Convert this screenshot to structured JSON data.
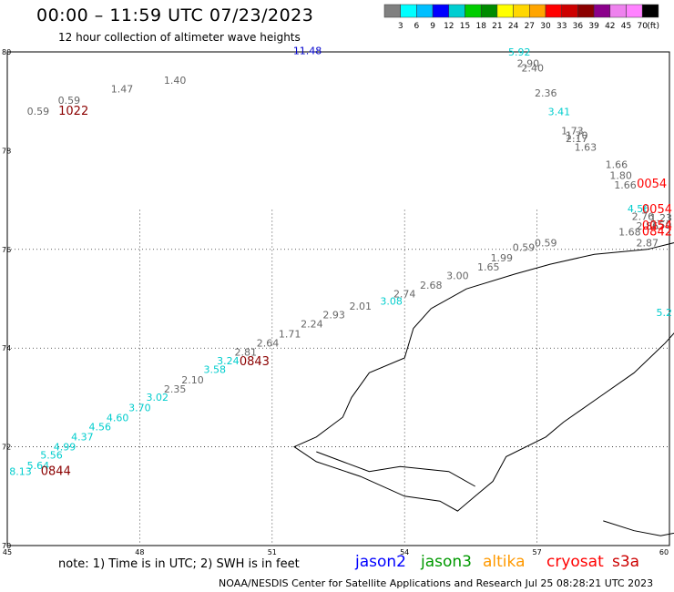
{
  "header": {
    "title": "00:00 – 11:59 UTC 07/23/2023",
    "subtitle": "12 hour collection of altimeter wave heights"
  },
  "colorbar": {
    "ticks": [
      "3",
      "6",
      "9",
      "12",
      "15",
      "18",
      "21",
      "24",
      "27",
      "30",
      "33",
      "36",
      "39",
      "42",
      "45",
      "70"
    ],
    "unit": "(ft)",
    "colors": [
      "#808080",
      "#00ffff",
      "#00bfff",
      "#0000ff",
      "#00ced1",
      "#00cd00",
      "#008b00",
      "#ffff00",
      "#ffd700",
      "#ffa500",
      "#ff0000",
      "#cd0000",
      "#8b0000",
      "#8b008b",
      "#ee82ee",
      "#ff82ff",
      "#000000"
    ]
  },
  "axes": {
    "lat_labels": [
      "80",
      "78",
      "76",
      "74",
      "72",
      "70"
    ],
    "lon_labels": [
      "45",
      "48",
      "51",
      "54",
      "57",
      "60"
    ]
  },
  "wave_labels": [
    {
      "text": "11.48",
      "color": "#0000cd",
      "lon": 51.8,
      "lat": 79.95
    },
    {
      "text": "5.92",
      "color": "#00cdcd",
      "lon": 56.6,
      "lat": 79.93
    },
    {
      "text": "2.90",
      "color": "#666666",
      "lon": 56.8,
      "lat": 79.7
    },
    {
      "text": "2.40",
      "color": "#666666",
      "lon": 56.9,
      "lat": 79.6
    },
    {
      "text": "2.36",
      "color": "#666666",
      "lon": 57.2,
      "lat": 79.1
    },
    {
      "text": "3.41",
      "color": "#00cdcd",
      "lon": 57.5,
      "lat": 78.72
    },
    {
      "text": "1.73",
      "color": "#666666",
      "lon": 57.8,
      "lat": 78.33
    },
    {
      "text": "1.70",
      "color": "#666666",
      "lon": 57.9,
      "lat": 78.24
    },
    {
      "text": "2.17",
      "color": "#666666",
      "lon": 57.9,
      "lat": 78.17
    },
    {
      "text": "1.63",
      "color": "#666666",
      "lon": 58.1,
      "lat": 78.0
    },
    {
      "text": "1.66",
      "color": "#666666",
      "lon": 58.8,
      "lat": 77.65
    },
    {
      "text": "1.80",
      "color": "#666666",
      "lon": 58.9,
      "lat": 77.43
    },
    {
      "text": "1.66",
      "color": "#666666",
      "lon": 59.0,
      "lat": 77.23
    },
    {
      "text": "0054",
      "color": "#ff0000",
      "lon": 59.6,
      "lat": 77.25
    },
    {
      "text": "4.56",
      "color": "#00cdcd",
      "lon": 59.3,
      "lat": 76.75
    },
    {
      "text": "0054",
      "color": "#ff0000",
      "lon": 59.9,
      "lat": 76.73
    },
    {
      "text": "2.76",
      "color": "#666666",
      "lon": 59.4,
      "lat": 76.6
    },
    {
      "text": "1.23",
      "color": "#666666",
      "lon": 60.3,
      "lat": 76.57
    },
    {
      "text": "2.86",
      "color": "#666666",
      "lon": 59.5,
      "lat": 76.4
    },
    {
      "text": "0.59",
      "color": "#666666",
      "lon": 59.8,
      "lat": 76.42
    },
    {
      "text": "0054",
      "color": "#ff0000",
      "lon": 60.2,
      "lat": 76.4
    },
    {
      "text": "1.68",
      "color": "#666666",
      "lon": 59.1,
      "lat": 76.28
    },
    {
      "text": "0842",
      "color": "#ff0000",
      "lon": 59.8,
      "lat": 76.28
    },
    {
      "text": "2.87",
      "color": "#666666",
      "lon": 59.5,
      "lat": 76.06
    },
    {
      "text": "0.59",
      "color": "#666666",
      "lon": 57.2,
      "lat": 76.06
    },
    {
      "text": "0.59",
      "color": "#666666",
      "lon": 56.7,
      "lat": 75.97
    },
    {
      "text": "1.99",
      "color": "#666666",
      "lon": 56.2,
      "lat": 75.76
    },
    {
      "text": "1.65",
      "color": "#666666",
      "lon": 55.9,
      "lat": 75.57
    },
    {
      "text": "3.00",
      "color": "#666666",
      "lon": 55.2,
      "lat": 75.4
    },
    {
      "text": "2.68",
      "color": "#666666",
      "lon": 54.6,
      "lat": 75.2
    },
    {
      "text": "2.74",
      "color": "#666666",
      "lon": 54.0,
      "lat": 75.03
    },
    {
      "text": "3.08",
      "color": "#00cdcd",
      "lon": 53.7,
      "lat": 74.88
    },
    {
      "text": "2.01",
      "color": "#666666",
      "lon": 53.0,
      "lat": 74.78
    },
    {
      "text": "2.93",
      "color": "#666666",
      "lon": 52.4,
      "lat": 74.6
    },
    {
      "text": "2.24",
      "color": "#666666",
      "lon": 51.9,
      "lat": 74.42
    },
    {
      "text": "1.71",
      "color": "#666666",
      "lon": 51.4,
      "lat": 74.22
    },
    {
      "text": "2.64",
      "color": "#666666",
      "lon": 50.9,
      "lat": 74.03
    },
    {
      "text": "2.81",
      "color": "#666666",
      "lon": 50.4,
      "lat": 73.85
    },
    {
      "text": "3.24",
      "color": "#00cdcd",
      "lon": 50.0,
      "lat": 73.67
    },
    {
      "text": "0843",
      "color": "#8b0000",
      "lon": 50.6,
      "lat": 73.65
    },
    {
      "text": "3.58",
      "color": "#00cdcd",
      "lon": 49.7,
      "lat": 73.5
    },
    {
      "text": "2.10",
      "color": "#666666",
      "lon": 49.2,
      "lat": 73.28
    },
    {
      "text": "2.35",
      "color": "#666666",
      "lon": 48.8,
      "lat": 73.1
    },
    {
      "text": "3.02",
      "color": "#00cdcd",
      "lon": 48.4,
      "lat": 72.93
    },
    {
      "text": "3.70",
      "color": "#00cdcd",
      "lon": 48.0,
      "lat": 72.72
    },
    {
      "text": "4.60",
      "color": "#00cdcd",
      "lon": 47.5,
      "lat": 72.52
    },
    {
      "text": "4.56",
      "color": "#00cdcd",
      "lon": 47.1,
      "lat": 72.33
    },
    {
      "text": "4.37",
      "color": "#00cdcd",
      "lon": 46.7,
      "lat": 72.13
    },
    {
      "text": "4.99",
      "color": "#00cdcd",
      "lon": 46.3,
      "lat": 71.93
    },
    {
      "text": "5.56",
      "color": "#00cdcd",
      "lon": 46.0,
      "lat": 71.76
    },
    {
      "text": "5.64",
      "color": "#00cdcd",
      "lon": 45.7,
      "lat": 71.55
    },
    {
      "text": "8.13",
      "color": "#00cdcd",
      "lon": 45.3,
      "lat": 71.43
    },
    {
      "text": "0844",
      "color": "#8b0000",
      "lon": 46.1,
      "lat": 71.43
    },
    {
      "text": "0.59",
      "color": "#666666",
      "lon": 46.4,
      "lat": 78.95
    },
    {
      "text": "1.47",
      "color": "#666666",
      "lon": 47.6,
      "lat": 79.18
    },
    {
      "text": "1.40",
      "color": "#666666",
      "lon": 48.8,
      "lat": 79.35
    },
    {
      "text": "0.59",
      "color": "#666666",
      "lon": 45.7,
      "lat": 78.73
    },
    {
      "text": "1022",
      "color": "#8b0000",
      "lon": 46.5,
      "lat": 78.73
    },
    {
      "text": "5.2",
      "color": "#00cdcd",
      "lon": 60.0,
      "lat": 74.65
    }
  ],
  "coastline": {
    "segments": [
      [
        [
          54.6,
          74.8
        ],
        [
          55.4,
          75.2
        ],
        [
          56.5,
          75.5
        ],
        [
          57.3,
          75.7
        ],
        [
          58.3,
          75.9
        ],
        [
          59.5,
          76.0
        ],
        [
          60.4,
          76.2
        ],
        [
          60.5,
          75.3
        ]
      ],
      [
        [
          54.6,
          74.8
        ],
        [
          54.2,
          74.4
        ],
        [
          54.0,
          73.8
        ],
        [
          53.2,
          73.5
        ],
        [
          52.8,
          73.0
        ],
        [
          52.6,
          72.6
        ],
        [
          52.0,
          72.2
        ],
        [
          51.5,
          72.0
        ],
        [
          52.0,
          71.7
        ],
        [
          53.0,
          71.4
        ],
        [
          54.0,
          71.0
        ],
        [
          54.8,
          70.9
        ],
        [
          55.2,
          70.7
        ],
        [
          55.6,
          71.0
        ],
        [
          56.0,
          71.3
        ],
        [
          56.3,
          71.8
        ],
        [
          57.2,
          72.2
        ],
        [
          57.6,
          72.5
        ],
        [
          58.4,
          73.0
        ],
        [
          59.2,
          73.5
        ],
        [
          59.9,
          74.1
        ],
        [
          60.4,
          74.6
        ]
      ],
      [
        [
          52.0,
          71.9
        ],
        [
          52.6,
          71.7
        ],
        [
          53.2,
          71.5
        ],
        [
          53.9,
          71.6
        ],
        [
          55.0,
          71.5
        ],
        [
          55.6,
          71.2
        ]
      ],
      [
        [
          58.5,
          70.5
        ],
        [
          59.2,
          70.3
        ],
        [
          59.8,
          70.2
        ],
        [
          60.4,
          70.3
        ]
      ]
    ]
  },
  "note": "note:  1) Time is in UTC;  2) SWH is in feet",
  "satellites": [
    {
      "name": "jason2",
      "color": "#0000ff"
    },
    {
      "name": "jason3",
      "color": "#009900"
    },
    {
      "name": "altika",
      "color": "#ff9900"
    },
    {
      "name": "cryosat",
      "color": "#ff0000"
    },
    {
      "name": "s3a",
      "color": "#cc0000"
    }
  ],
  "footer": "NOAA/NESDIS Center for Satellite Applications and Research     Jul 25 08:28:21 UTC 2023"
}
